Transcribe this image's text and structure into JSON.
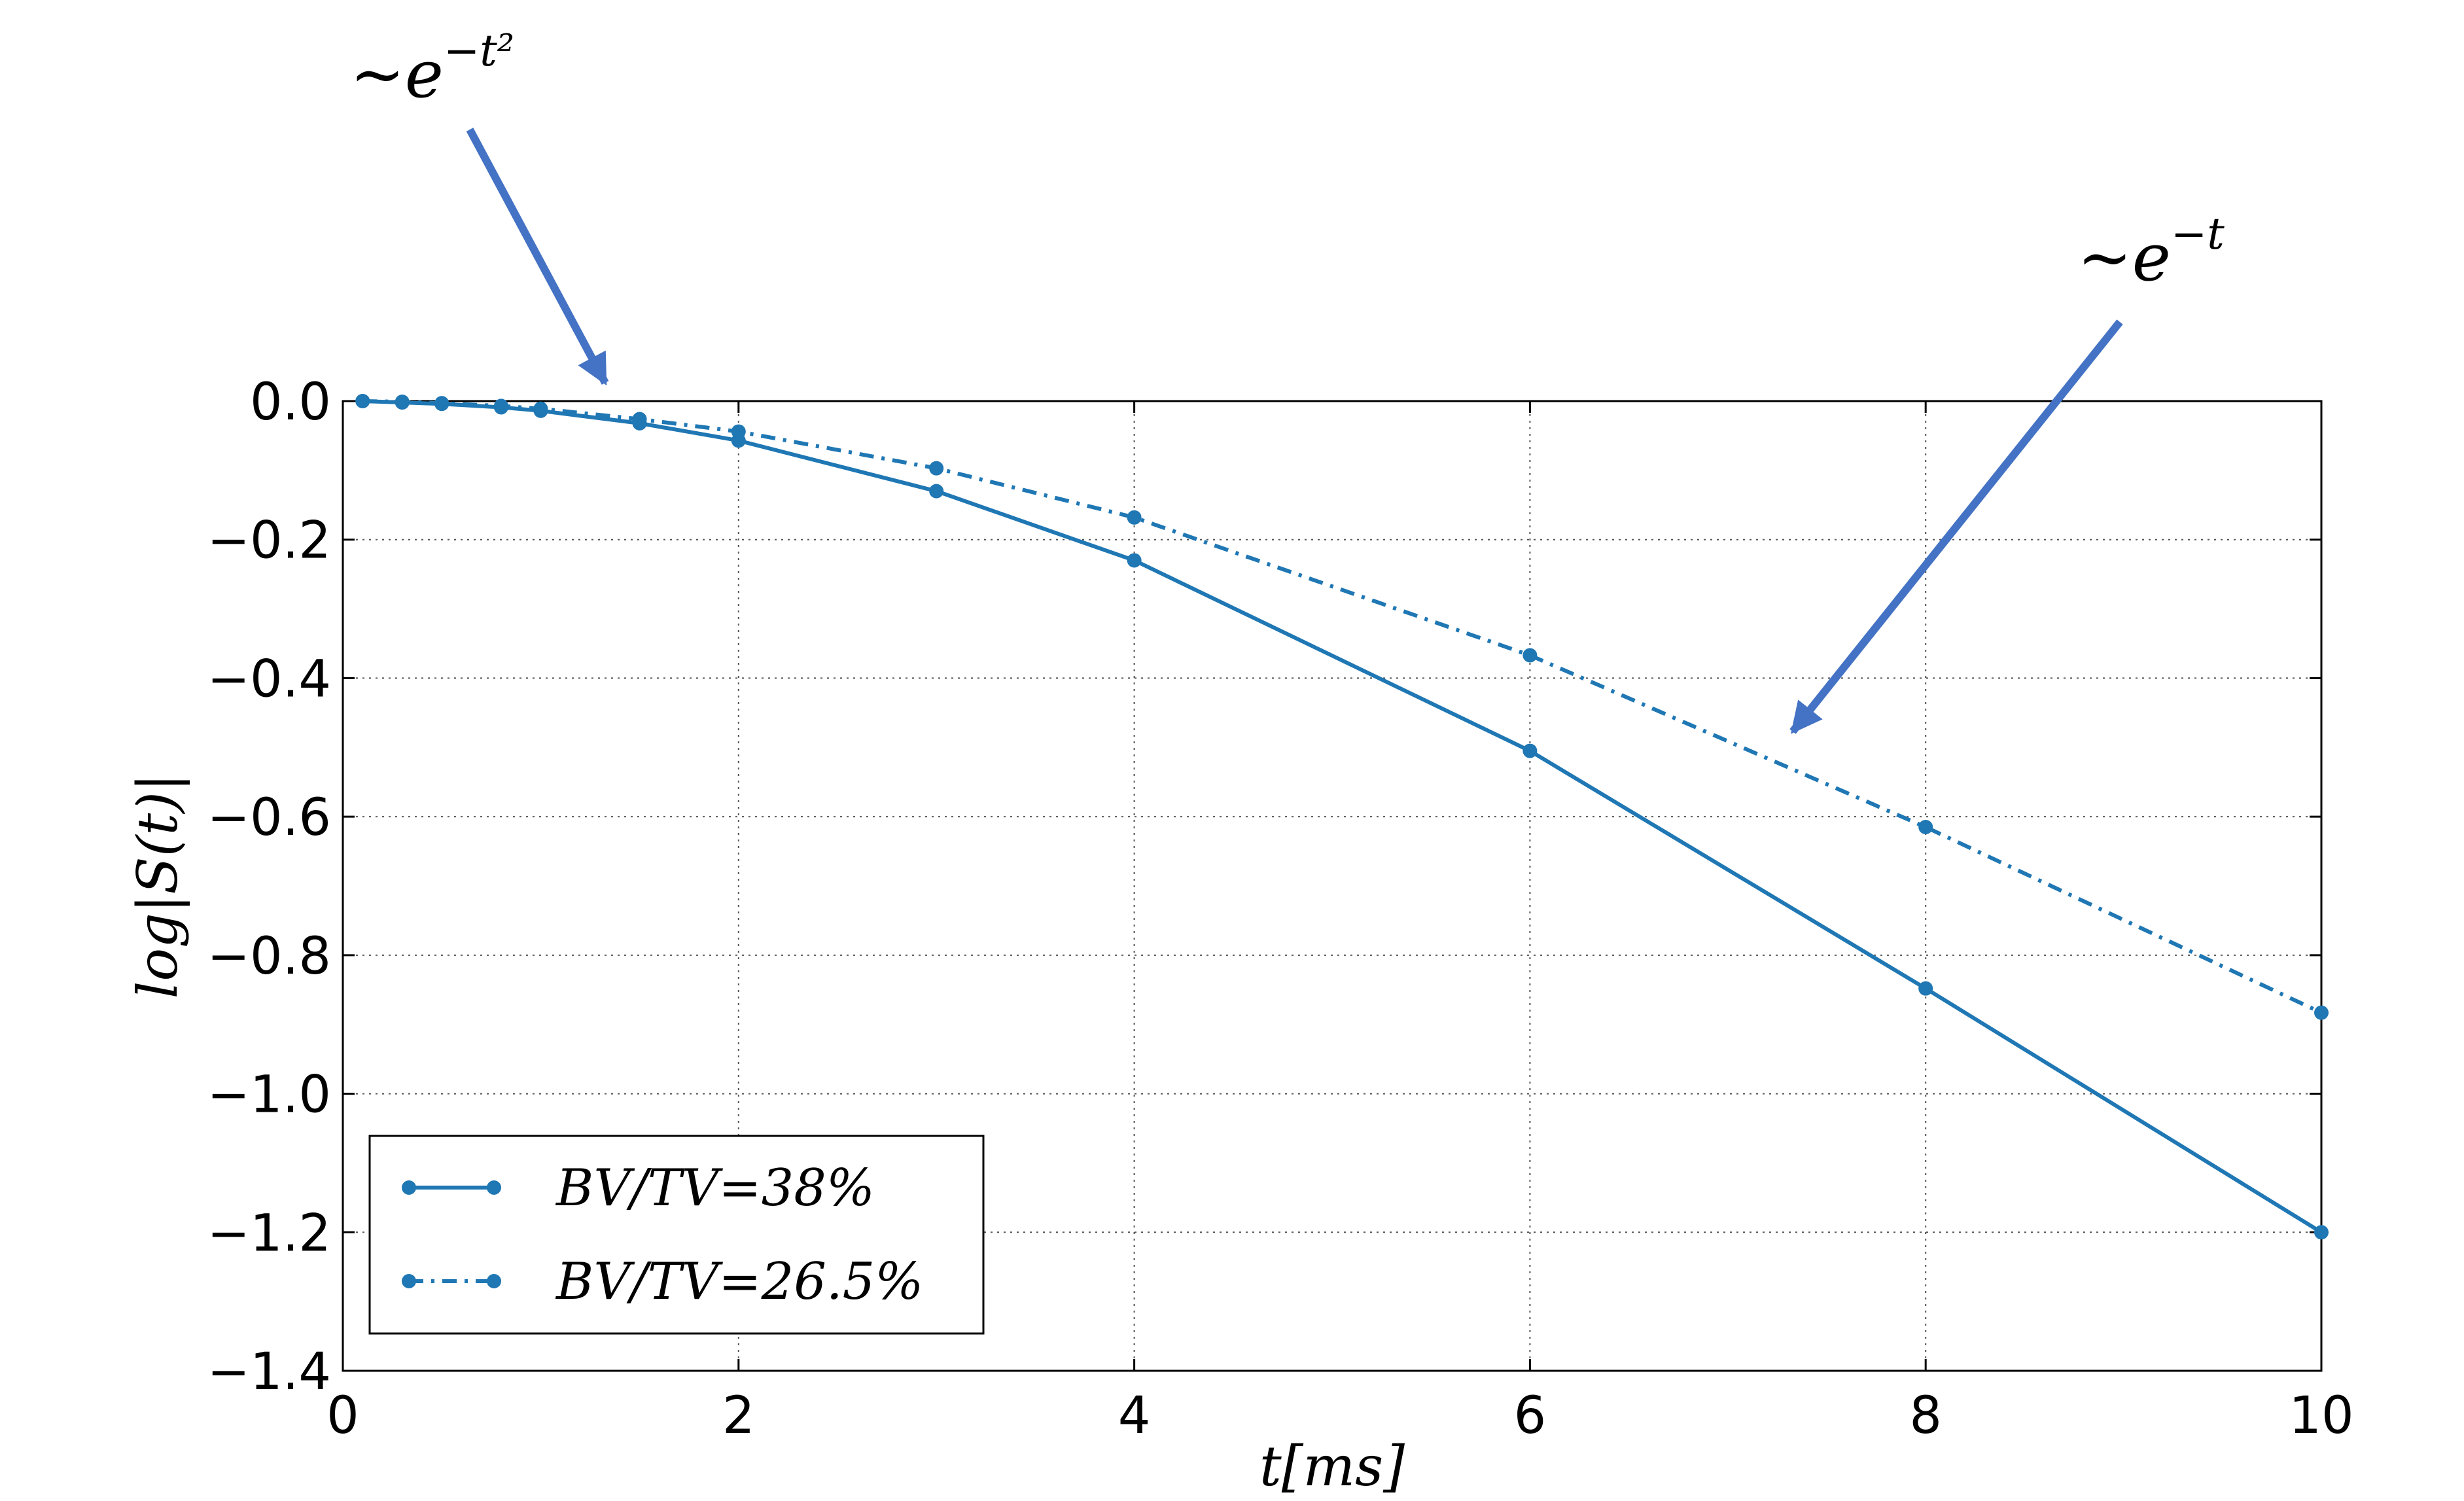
{
  "chart_data": {
    "type": "line",
    "xlabel": "t[ms]",
    "ylabel": "log|S(t)|",
    "xlim": [
      0,
      10
    ],
    "ylim": [
      -1.4,
      0.0
    ],
    "xticks": [
      0,
      2,
      4,
      6,
      8,
      10
    ],
    "xtick_labels": [
      "0",
      "2",
      "4",
      "6",
      "8",
      "10"
    ],
    "yticks": [
      0.0,
      -0.2,
      -0.4,
      -0.6,
      -0.8,
      -1.0,
      -1.2,
      -1.4
    ],
    "ytick_labels": [
      "0.0",
      "−0.2",
      "−0.4",
      "−0.6",
      "−0.8",
      "−1.0",
      "−1.2",
      "−1.4"
    ],
    "grid": true,
    "legend_position": "lower-left",
    "series": [
      {
        "name": "BV/TV=38%",
        "style": "solid",
        "color": "#1f77b4",
        "x": [
          0.1,
          0.3,
          0.5,
          0.8,
          1.0,
          1.5,
          2.0,
          3.0,
          4.0,
          6.0,
          8.0,
          10.0
        ],
        "y": [
          0.0,
          -0.002,
          -0.004,
          -0.009,
          -0.014,
          -0.032,
          -0.057,
          -0.13,
          -0.23,
          -0.505,
          -0.848,
          -1.2
        ]
      },
      {
        "name": "BV/TV=26.5%",
        "style": "dashdot",
        "color": "#1f77b4",
        "x": [
          0.1,
          0.3,
          0.5,
          0.8,
          1.0,
          1.5,
          2.0,
          3.0,
          4.0,
          6.0,
          8.0,
          10.0
        ],
        "y": [
          0.0,
          -0.001,
          -0.003,
          -0.007,
          -0.011,
          -0.026,
          -0.044,
          -0.097,
          -0.168,
          -0.367,
          -0.615,
          -0.883
        ]
      }
    ],
    "annotations": [
      {
        "name": "gaussian-decay",
        "prefix": "~e",
        "exponent": "−t²",
        "points_to": {
          "x": 1.35,
          "y": 0.03
        }
      },
      {
        "name": "exponential-decay",
        "prefix": "~e",
        "exponent": "−t",
        "points_to": {
          "x": 7.3,
          "y": -0.47
        }
      }
    ],
    "arrow_color": "#4472c4"
  }
}
